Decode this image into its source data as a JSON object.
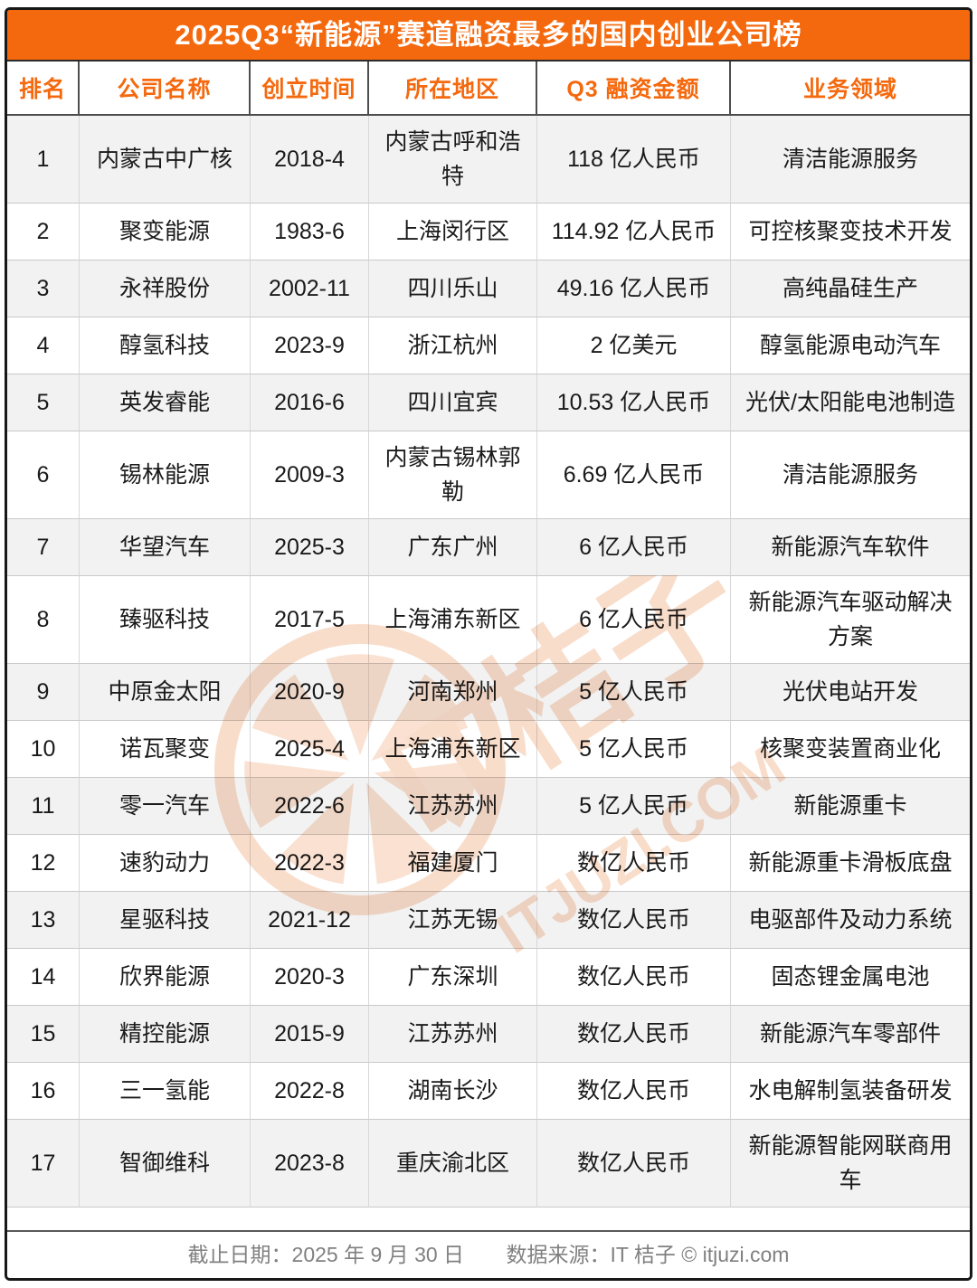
{
  "title": "2025Q3“新能源”赛道融资最多的国内创业公司榜",
  "chart_data": {
    "type": "table",
    "title": "2025Q3“新能源”赛道融资最多的国内创业公司榜",
    "columns": [
      "排名",
      "公司名称",
      "创立时间",
      "所在地区",
      "Q3 融资金额",
      "业务领域"
    ],
    "rows": [
      {
        "rank": "1",
        "company": "内蒙古中广核",
        "founded": "2018-4",
        "location": "内蒙古呼和浩特",
        "amount": "118 亿人民币",
        "field": "清洁能源服务"
      },
      {
        "rank": "2",
        "company": "聚变能源",
        "founded": "1983-6",
        "location": "上海闵行区",
        "amount": "114.92 亿人民币",
        "field": "可控核聚变技术开发"
      },
      {
        "rank": "3",
        "company": "永祥股份",
        "founded": "2002-11",
        "location": "四川乐山",
        "amount": "49.16 亿人民币",
        "field": "高纯晶硅生产"
      },
      {
        "rank": "4",
        "company": "醇氢科技",
        "founded": "2023-9",
        "location": "浙江杭州",
        "amount": "2 亿美元",
        "field": "醇氢能源电动汽车"
      },
      {
        "rank": "5",
        "company": "英发睿能",
        "founded": "2016-6",
        "location": "四川宜宾",
        "amount": "10.53 亿人民币",
        "field": "光伏/太阳能电池制造"
      },
      {
        "rank": "6",
        "company": "锡林能源",
        "founded": "2009-3",
        "location": "内蒙古锡林郭勒",
        "amount": "6.69 亿人民币",
        "field": "清洁能源服务"
      },
      {
        "rank": "7",
        "company": "华望汽车",
        "founded": "2025-3",
        "location": "广东广州",
        "amount": "6 亿人民币",
        "field": "新能源汽车软件"
      },
      {
        "rank": "8",
        "company": "臻驱科技",
        "founded": "2017-5",
        "location": "上海浦东新区",
        "amount": "6 亿人民币",
        "field": "新能源汽车驱动解决方案"
      },
      {
        "rank": "9",
        "company": "中原金太阳",
        "founded": "2020-9",
        "location": "河南郑州",
        "amount": "5 亿人民币",
        "field": "光伏电站开发"
      },
      {
        "rank": "10",
        "company": "诺瓦聚变",
        "founded": "2025-4",
        "location": "上海浦东新区",
        "amount": "5 亿人民币",
        "field": "核聚变装置商业化"
      },
      {
        "rank": "11",
        "company": "零一汽车",
        "founded": "2022-6",
        "location": "江苏苏州",
        "amount": "5 亿人民币",
        "field": "新能源重卡"
      },
      {
        "rank": "12",
        "company": "速豹动力",
        "founded": "2022-3",
        "location": "福建厦门",
        "amount": "数亿人民币",
        "field": "新能源重卡滑板底盘"
      },
      {
        "rank": "13",
        "company": "星驱科技",
        "founded": "2021-12",
        "location": "江苏无锡",
        "amount": "数亿人民币",
        "field": "电驱部件及动力系统"
      },
      {
        "rank": "14",
        "company": "欣界能源",
        "founded": "2020-3",
        "location": "广东深圳",
        "amount": "数亿人民币",
        "field": "固态锂金属电池"
      },
      {
        "rank": "15",
        "company": "精控能源",
        "founded": "2015-9",
        "location": "江苏苏州",
        "amount": "数亿人民币",
        "field": "新能源汽车零部件"
      },
      {
        "rank": "16",
        "company": "三一氢能",
        "founded": "2022-8",
        "location": "湖南长沙",
        "amount": "数亿人民币",
        "field": "水电解制氢装备研发"
      },
      {
        "rank": "17",
        "company": "智御维科",
        "founded": "2023-8",
        "location": "重庆渝北区",
        "amount": "数亿人民币",
        "field": "新能源智能网联商用车"
      }
    ]
  },
  "footer": {
    "deadline": "截止日期：2025 年 9 月 30 日",
    "source": "数据来源：IT 桔子 © itjuzi.com"
  },
  "watermark": {
    "brand": "IT桔子",
    "site": "ITJUZI.COM"
  },
  "colors": {
    "accent": "#F5690E",
    "shade_row": "#F2F2F2",
    "watermark": "#F3B690",
    "footer_text": "#808080"
  }
}
